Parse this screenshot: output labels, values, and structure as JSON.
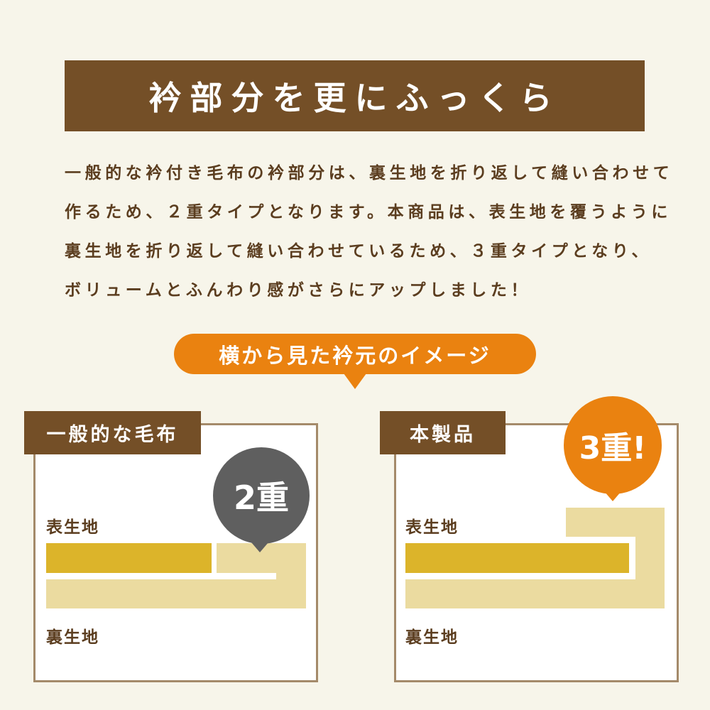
{
  "title": "衿部分を更にふっくら",
  "description": [
    "一般的な衿付き毛布の衿部分は、裏生地を折り返して縫い合わせて",
    "作るため、２重タイプとなります。本商品は、表生地を覆うように",
    "裏生地を折り返して縫い合わせているため、３重タイプとなり、",
    "ボリュームとふんわり感がさらにアップしました！"
  ],
  "subheading": "横から見た衿元のイメージ",
  "panels": [
    {
      "tag": "一般的な毛布",
      "badge": "2重",
      "top_label": "表生地",
      "bottom_label": "裏生地",
      "layers": 2,
      "badge_color": "#5f5f5f"
    },
    {
      "tag": "本製品",
      "badge": "3重!",
      "top_label": "表生地",
      "bottom_label": "裏生地",
      "layers": 3,
      "badge_color": "#ea8210"
    }
  ],
  "colors": {
    "brown": "#744f27",
    "orange": "#ea8210",
    "outer_fabric": "#dcb42a",
    "inner_fabric": "#ebdba0",
    "background": "#f7f5ea"
  }
}
